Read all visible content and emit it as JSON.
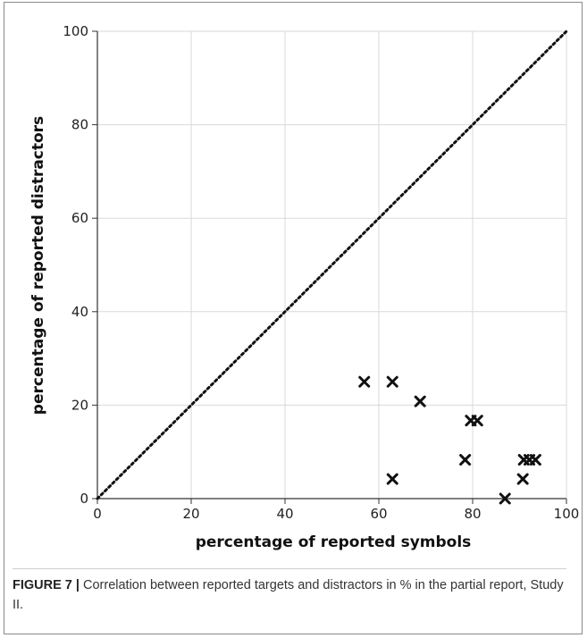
{
  "chart_data": {
    "type": "scatter",
    "xlabel": "percentage of reported symbols",
    "ylabel": "percentage of reported distractors",
    "xlim": [
      0,
      100
    ],
    "ylim": [
      0,
      100
    ],
    "xticks": [
      "0",
      "20",
      "40",
      "60",
      "80",
      "100"
    ],
    "yticks": [
      "0",
      "20",
      "40",
      "60",
      "80",
      "100"
    ],
    "grid": true,
    "reference_line": {
      "from": [
        0,
        0
      ],
      "to": [
        100,
        100
      ],
      "style": "dotted"
    },
    "marker": "x",
    "series": [
      {
        "points": [
          {
            "x": 56.9,
            "y": 25.0
          },
          {
            "x": 62.9,
            "y": 25.0
          },
          {
            "x": 62.9,
            "y": 4.2
          },
          {
            "x": 68.8,
            "y": 20.8
          },
          {
            "x": 79.6,
            "y": 16.7
          },
          {
            "x": 81.0,
            "y": 16.7
          },
          {
            "x": 78.4,
            "y": 8.3
          },
          {
            "x": 86.9,
            "y": 0.0
          },
          {
            "x": 90.7,
            "y": 4.2
          },
          {
            "x": 90.9,
            "y": 8.3
          },
          {
            "x": 92.1,
            "y": 8.3
          },
          {
            "x": 93.4,
            "y": 8.3
          }
        ]
      }
    ],
    "colors": {
      "marker": "#111111",
      "grid": "#d9d9d9",
      "axis": "#333333",
      "reference_line": "#111111"
    }
  },
  "caption": {
    "label": "FIGURE 7 |",
    "text": " Correlation between reported targets and distractors in % in the partial report, Study II."
  }
}
